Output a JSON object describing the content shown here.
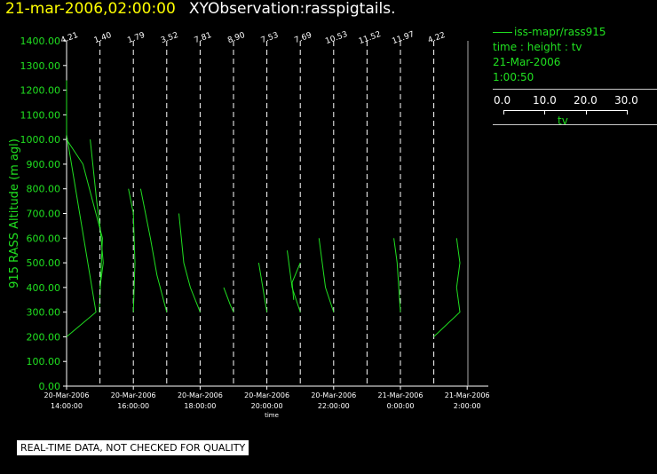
{
  "title": {
    "date": "21-mar-2006,02:00:00",
    "name": "XYObservation:rasspigtails."
  },
  "legend": {
    "series": "iss-mapr/rass915",
    "desc": "time : height : tv",
    "date": "21-Mar-2006",
    "time": "1:00:50",
    "scale_ticks": [
      "0.0",
      "10.0",
      "20.0",
      "30.0"
    ],
    "scale_label": "tv",
    "scale_range": [
      0,
      30
    ]
  },
  "note": "REAL-TIME DATA, NOT CHECKED FOR QUALITY",
  "colors": {
    "background": "#000000",
    "data": "#20e020",
    "axis": "#ffffff",
    "title_date": "#ffff00"
  },
  "chart_data": {
    "type": "line",
    "ylabel": "915 RASS Altitude (m agl)",
    "xlabel": "time",
    "ylim": [
      0,
      1400
    ],
    "yticks": [
      "0.00",
      "100.00",
      "200.00",
      "300.00",
      "400.00",
      "500.00",
      "600.00",
      "700.00",
      "800.00",
      "900.00",
      "1000.00",
      "1100.00",
      "1200.00",
      "1300.00",
      "1400.00"
    ],
    "xlim": [
      13,
      26
    ],
    "xticks": [
      {
        "h": 14,
        "date": "20-Mar-2006",
        "time": "14:00:00"
      },
      {
        "h": 16,
        "date": "20-Mar-2006",
        "time": "16:00:00"
      },
      {
        "h": 18,
        "date": "20-Mar-2006",
        "time": "18:00:00"
      },
      {
        "h": 20,
        "date": "20-Mar-2006",
        "time": "20:00:00"
      },
      {
        "h": 22,
        "date": "20-Mar-2006",
        "time": "22:00:00"
      },
      {
        "h": 24,
        "date": "21-Mar-2006",
        "time": "0:00:00"
      },
      {
        "h": 26,
        "date": "21-Mar-2006",
        "time": "2:00:00"
      }
    ],
    "profiles": [
      {
        "h": 14.0,
        "label": "4.21",
        "points": [
          [
            0.0,
            200
          ],
          [
            0.9,
            300
          ],
          [
            0.0,
            1020
          ],
          [
            0.0,
            1240
          ]
        ]
      },
      {
        "h": 14.0,
        "label": "",
        "points": [
          [
            0.0,
            1000
          ],
          [
            0.5,
            900
          ],
          [
            0.8,
            750
          ],
          [
            1.1,
            600
          ],
          [
            1.0,
            300
          ]
        ]
      },
      {
        "h": 15.0,
        "label": "1.40",
        "points": [
          [
            -0.3,
            1000
          ],
          [
            -0.1,
            750
          ],
          [
            0.0,
            650
          ],
          [
            0.1,
            500
          ],
          [
            0.0,
            400
          ]
        ]
      },
      {
        "h": 16.0,
        "label": "1.79",
        "points": [
          [
            -0.15,
            800
          ],
          [
            0.0,
            700
          ],
          [
            0.05,
            500
          ],
          [
            0.0,
            300
          ]
        ]
      },
      {
        "h": 17.0,
        "label": "3.52",
        "points": [
          [
            -0.8,
            800
          ],
          [
            -0.5,
            600
          ],
          [
            -0.3,
            450
          ],
          [
            -0.1,
            350
          ],
          [
            0.0,
            300
          ]
        ]
      },
      {
        "h": 18.0,
        "label": "7.81",
        "points": [
          [
            -0.65,
            700
          ],
          [
            -0.5,
            500
          ],
          [
            -0.3,
            400
          ],
          [
            0.0,
            300
          ]
        ]
      },
      {
        "h": 19.0,
        "label": "8.90",
        "points": [
          [
            -0.3,
            400
          ],
          [
            -0.1,
            330
          ],
          [
            0.0,
            300
          ]
        ]
      },
      {
        "h": 20.0,
        "label": "7.53",
        "points": [
          [
            -0.25,
            500
          ],
          [
            -0.1,
            380
          ],
          [
            0.0,
            300
          ]
        ]
      },
      {
        "h": 21.0,
        "label": "7.69",
        "points": [
          [
            -0.4,
            550
          ],
          [
            -0.25,
            400
          ],
          [
            0.0,
            300
          ]
        ]
      },
      {
        "h": 21.0,
        "label": "",
        "points": [
          [
            0.0,
            500
          ],
          [
            -0.25,
            420
          ],
          [
            -0.2,
            350
          ]
        ]
      },
      {
        "h": 22.0,
        "label": "10.53",
        "points": [
          [
            -0.45,
            600
          ],
          [
            -0.25,
            400
          ],
          [
            0.0,
            300
          ]
        ]
      },
      {
        "h": 23.0,
        "label": "11.52",
        "points": []
      },
      {
        "h": 24.0,
        "label": "11.97",
        "points": [
          [
            -0.2,
            600
          ],
          [
            -0.1,
            500
          ],
          [
            0.0,
            300
          ]
        ]
      },
      {
        "h": 25.0,
        "label": "4.22",
        "points": [
          [
            0.0,
            200
          ],
          [
            0.8,
            300
          ],
          [
            0.7,
            400
          ],
          [
            0.8,
            500
          ],
          [
            0.7,
            600
          ]
        ]
      }
    ]
  }
}
